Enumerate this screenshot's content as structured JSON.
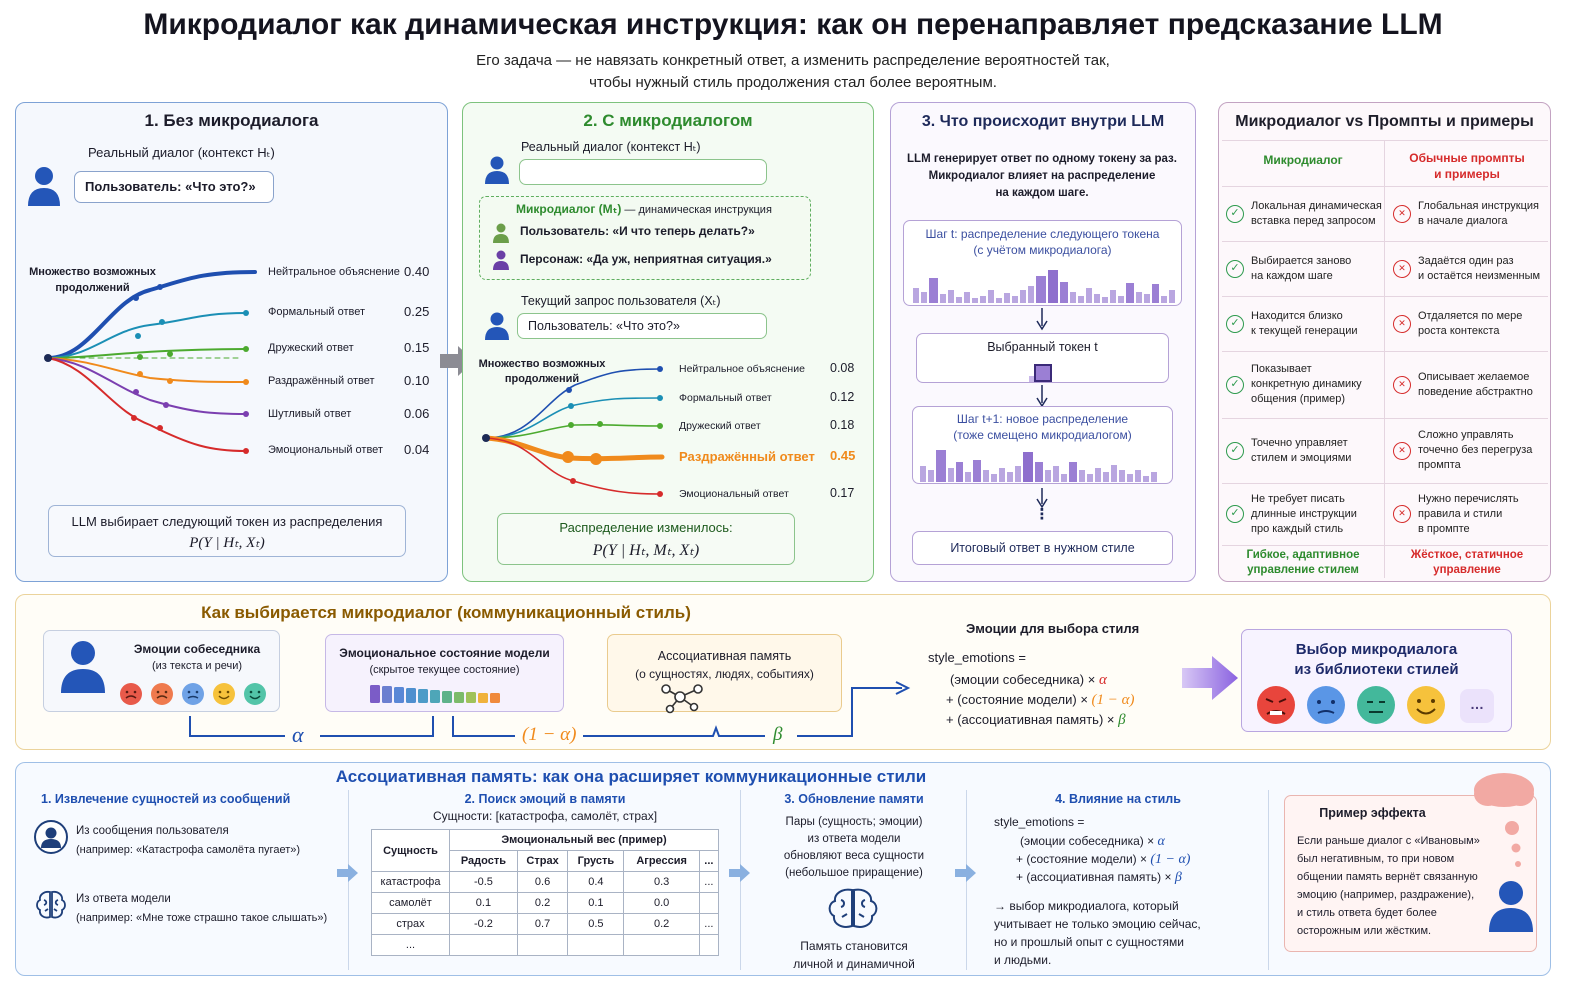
{
  "header": {
    "title": "Микродиалог как динамическая инструкция: как он перенаправляет предсказание LLM",
    "subtitle_line1": "Его задача — не навязать конкретный ответ, а изменить распределение вероятностей так,",
    "subtitle_line2": "чтобы нужный стиль продолжения стал более вероятным."
  },
  "panel1": {
    "title": "1. Без микродиалога",
    "context_label": "Реальный диалог (контекст Hₜ)",
    "user_bubble": "Пользователь: «Что это?»",
    "continuations_label_1": "Множество возможных",
    "continuations_label_2": "продолжений",
    "options": [
      {
        "label": "Нейтральное объяснение",
        "value": "0.40"
      },
      {
        "label": "Формальный ответ",
        "value": "0.25"
      },
      {
        "label": "Дружеский ответ",
        "value": "0.15"
      },
      {
        "label": "Раздражённый ответ",
        "value": "0.10"
      },
      {
        "label": "Шутливый ответ",
        "value": "0.06"
      },
      {
        "label": "Эмоциональный ответ",
        "value": "0.04"
      }
    ],
    "footer_line1": "LLM выбирает следующий токен из распределения",
    "footer_formula": "P(Y | Hₜ, Xₜ)"
  },
  "panel2": {
    "title": "2. С микродиалогом",
    "context_label": "Реальный диалог (контекст Hₜ)",
    "micro_label": "Микродиалог (Mₜ)",
    "micro_suffix": " — динамическая инструкция",
    "micro_user": "Пользователь: «И что теперь делать?»",
    "micro_persona": "Персонаж: «Да уж, неприятная ситуация.»",
    "query_label": "Текущий запрос пользователя (Xₜ)",
    "query_bubble": "Пользователь: «Что это?»",
    "continuations_label_1": "Множество возможных",
    "continuations_label_2": "продолжений",
    "options": [
      {
        "label": "Нейтральное объяснение",
        "value": "0.08"
      },
      {
        "label": "Формальный ответ",
        "value": "0.12"
      },
      {
        "label": "Дружеский ответ",
        "value": "0.18"
      },
      {
        "label": "Раздражённый ответ",
        "value": "0.45"
      },
      {
        "label": "Эмоциональный ответ",
        "value": "0.17"
      }
    ],
    "footer_line1": "Распределение изменилось:",
    "footer_formula": "P(Y | Hₜ, Mₜ, Xₜ)"
  },
  "panel3": {
    "title": "3. Что происходит внутри LLM",
    "intro_1": "LLM генерирует ответ по одному токену за раз.",
    "intro_2": "Микродиалог влияет на распределение",
    "intro_3": "на каждом шаге.",
    "step1_1": "Шаг t: распределение следующего токена",
    "step1_2": "(с учётом микродиалога)",
    "chosen": "Выбранный токен  t",
    "step2_1": "Шаг t+1: новое распределение",
    "step2_2": "(тоже смещено микродиалогом)",
    "dots": "⋮",
    "final": "Итоговый ответ в нужном стиле"
  },
  "panel4": {
    "title": "Микродиалог vs Промпты и примеры",
    "col_left": "Микродиалог",
    "col_right_1": "Обычные промпты",
    "col_right_2": "и примеры",
    "rows": [
      {
        "left": [
          "Локальная динамическая",
          "вставка перед запросом"
        ],
        "right": [
          "Глобальная инструкция",
          "в начале диалога"
        ]
      },
      {
        "left": [
          "Выбирается заново",
          "на каждом шаге"
        ],
        "right": [
          "Задаётся один раз",
          "и остаётся неизменным"
        ]
      },
      {
        "left": [
          "Находится близко",
          "к текущей генерации"
        ],
        "right": [
          "Отдаляется по мере",
          "роста контекста"
        ]
      },
      {
        "left": [
          "Показывает",
          "конкретную динамику",
          "общения (пример)"
        ],
        "right": [
          "Описывает желаемое",
          "поведение абстрактно"
        ]
      },
      {
        "left": [
          "Точечно управляет",
          "стилем и эмоциями"
        ],
        "right": [
          "Сложно управлять",
          "точечно без перегруза",
          "промпта"
        ]
      },
      {
        "left": [
          "Не требует писать",
          "длинные инструкции",
          "про каждый стиль"
        ],
        "right": [
          "Нужно перечислять",
          "правила и стили",
          "в промпте"
        ]
      }
    ],
    "footer_left_1": "Гибкое, адаптивное",
    "footer_left_2": "управление стилем",
    "footer_right_1": "Жёсткое, статичное",
    "footer_right_2": "управление",
    "check_glyph": "✓",
    "cross_glyph": "✕"
  },
  "selection": {
    "title": "Как выбирается микродиалог (коммуникационный стиль)",
    "emotions_title_1": "Эмоции собеседника",
    "emotions_title_2": "(из текста и речи)",
    "model_state_1": "Эмоциональное состояние модели",
    "model_state_2": "(скрытое текущее состояние)",
    "memory_1": "Ассоциативная память",
    "memory_2": "(о сущностях, людях, событиях)",
    "alpha": "α",
    "one_minus_alpha": "(1 − α)",
    "beta": "β",
    "formula_title": "Эмоции для  выбора стиля",
    "formula_1": "style_emotions =",
    "formula_2a": "(эмоции собеседника) × ",
    "formula_2b": "α",
    "formula_3a": "+ (состояние модели) × ",
    "formula_3b": "(1 − α)",
    "formula_4a": "+ (ассоциативная память) × ",
    "formula_4b": "β",
    "library_1": "Выбор микродиалога",
    "library_2": "из библиотеки стилей",
    "library_more": "…"
  },
  "memory": {
    "title": "Ассоциативная память: как она расширяет коммуникационные стили",
    "s1_title": "1. Извлечение сущностей из сообщений",
    "s1_a1": "Из сообщения пользователя",
    "s1_a2": "(например: «Катастрофа самолёта пугает»)",
    "s1_b1": "Из ответа модели",
    "s1_b2": "(например: «Мне тоже страшно такое слышать»)",
    "s2_title": "2. Поиск эмоций в памяти",
    "s2_entities": "Сущности: [катастрофа, самолёт, страх]",
    "table": {
      "entity_header": "Сущность",
      "weight_header": "Эмоциональный вес (пример)",
      "columns": [
        "Радость",
        "Страх",
        "Грусть",
        "Агрессия",
        "..."
      ],
      "rows": [
        {
          "name": "катастрофа",
          "vals": [
            "-0.5",
            "0.6",
            "0.4",
            "0.3",
            "..."
          ]
        },
        {
          "name": "самолёт",
          "vals": [
            "0.1",
            "0.2",
            "0.1",
            "0.0",
            ""
          ]
        },
        {
          "name": "страх",
          "vals": [
            "-0.2",
            "0.7",
            "0.5",
            "0.2",
            "..."
          ]
        },
        {
          "name": "...",
          "vals": [
            "",
            "",
            "",
            "",
            ""
          ]
        }
      ]
    },
    "s3_title": "3. Обновление памяти",
    "s3_1": "Пары (сущность; эмоции)",
    "s3_2": "из ответа модели",
    "s3_3": "обновляют веса сущности",
    "s3_4": "(небольшое приращение)",
    "s3_5": "Память становится",
    "s3_6": "личной и динамичной",
    "s4_title": "4. Влияние на стиль",
    "s4_f1": "style_emotions =",
    "s4_f2a": "(эмоции собеседника) × ",
    "s4_f2b": "α",
    "s4_f3a": "+ (состояние модели) × ",
    "s4_f3b": "(1 − α)",
    "s4_f4a": "+ (ассоциативная память) × ",
    "s4_f4b": "β",
    "s4_n1": "→ выбор микродиалога, который",
    "s4_n2": "учитывает не только эмоцию сейчас,",
    "s4_n3": "но и прошлый опыт с сущностями",
    "s4_n4": "и людьми.",
    "example_title": "Пример эффекта",
    "example_1": "Если раньше диалог с «Ивановым»",
    "example_2": "был негативным, то при новом",
    "example_3": "общении память вернёт связанную",
    "example_4": "эмоцию (например, раздражение),",
    "example_5": "и стиль ответа будет более",
    "example_6": "осторожным или жёстким."
  },
  "colors": {
    "blue": "#1f4fb0",
    "green": "#2e8b2e",
    "purple": "#7b5cc7",
    "orange": "#f08a1c",
    "red": "#d62b2b",
    "gold": "#8a5a00"
  }
}
